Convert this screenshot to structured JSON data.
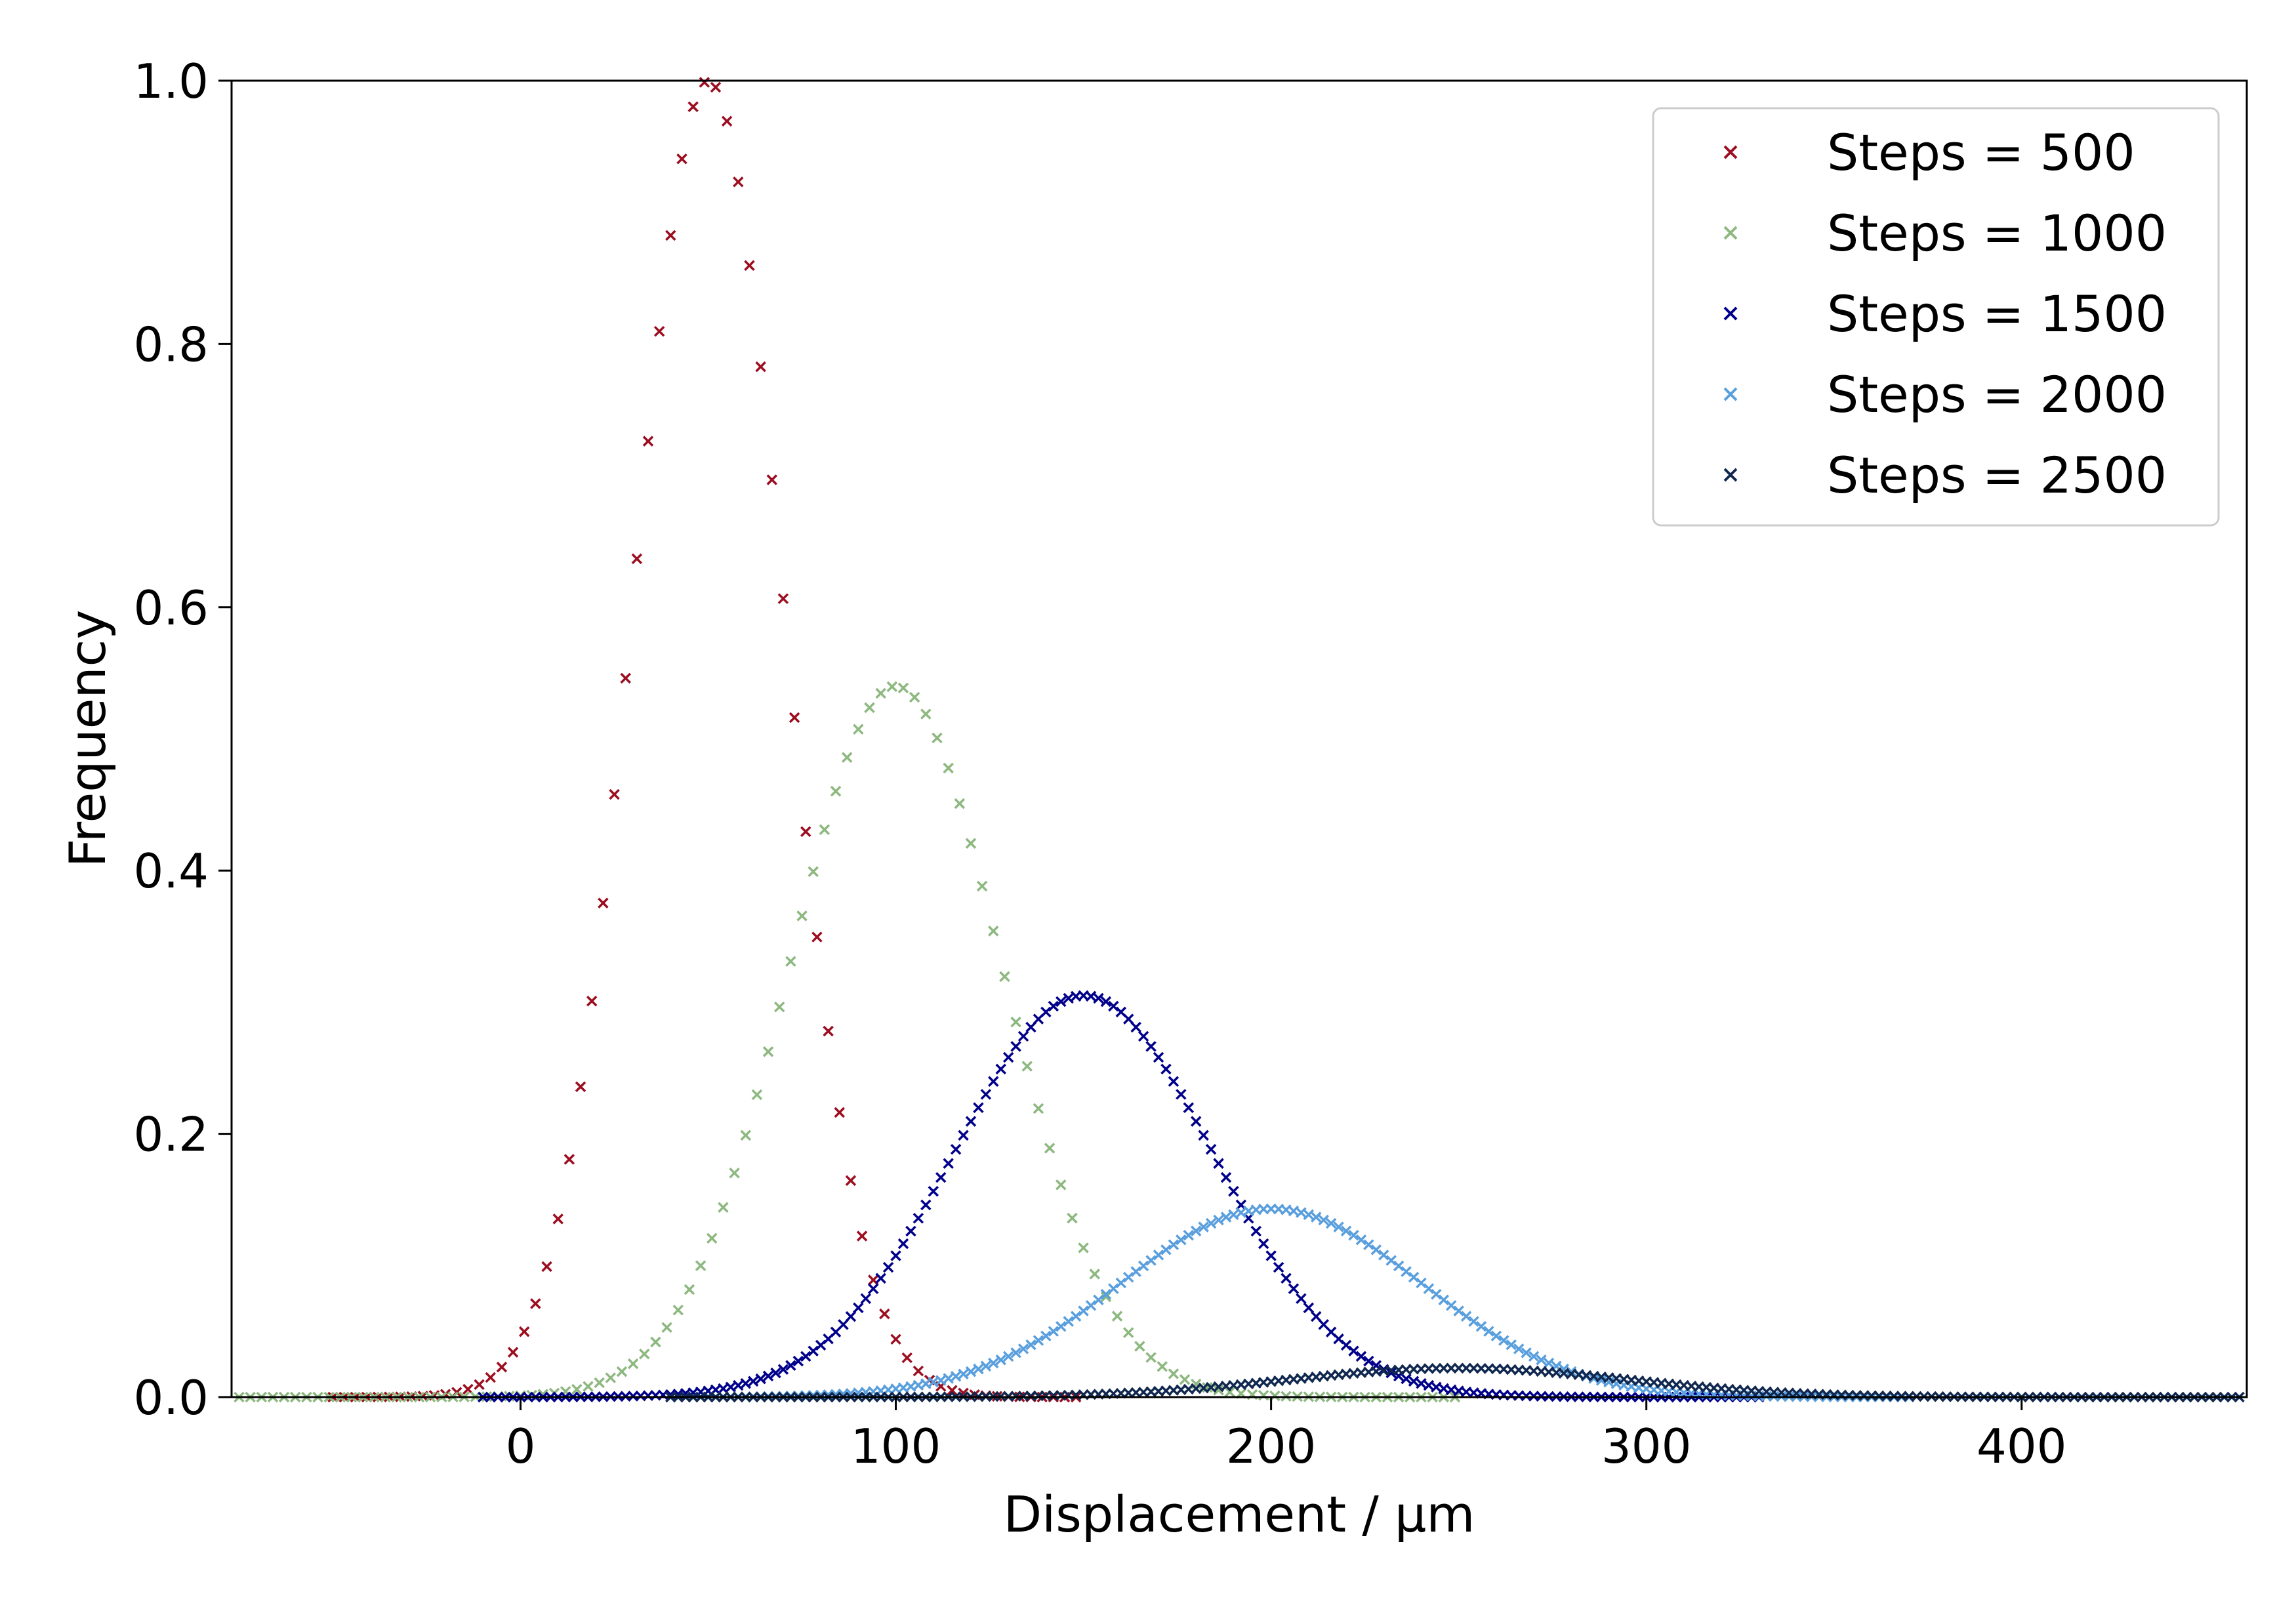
{
  "chart_data": {
    "type": "scatter",
    "title": "",
    "xlabel": "Displacement / μm",
    "ylabel": "Frequency",
    "xlim": [
      -77,
      460
    ],
    "ylim": [
      0,
      1.0
    ],
    "xticks": [
      0,
      100,
      200,
      300,
      400
    ],
    "yticks": [
      0.0,
      0.2,
      0.4,
      0.6,
      0.8,
      1.0
    ],
    "xtick_labels": [
      "0",
      "100",
      "200",
      "300",
      "400"
    ],
    "ytick_labels": [
      "0.0",
      "0.2",
      "0.4",
      "0.6",
      "0.8",
      "1.0"
    ],
    "grid": false,
    "legend_position": "top-right",
    "marker": "x",
    "series": [
      {
        "name": "Steps = 500",
        "color": "#9b0d1f",
        "mean": 50,
        "sd": 20.0,
        "peak": 1.0,
        "step": 3.0,
        "x_min": -50,
        "x_max": 150
      },
      {
        "name": "Steps = 1000",
        "color": "#8db87f",
        "mean": 100,
        "sd": 28.3,
        "peak": 0.54,
        "step": 3.0,
        "x_min": -75,
        "x_max": 250
      },
      {
        "name": "Steps = 1500",
        "color": "#00008b",
        "mean": 150,
        "sd": 34.6,
        "peak": 0.305,
        "step": 2.0,
        "x_min": -10,
        "x_max": 330
      },
      {
        "name": "Steps = 2000",
        "color": "#5a9fdd",
        "mean": 200,
        "sd": 40.0,
        "peak": 0.143,
        "step": 2.0,
        "x_min": 40,
        "x_max": 370
      },
      {
        "name": "Steps = 2500",
        "color": "#10284f",
        "mean": 250,
        "sd": 44.7,
        "peak": 0.022,
        "step": 2.0,
        "x_min": 40,
        "x_max": 458
      }
    ]
  }
}
